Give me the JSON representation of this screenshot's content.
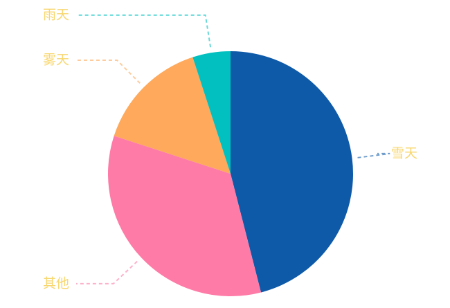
{
  "chart_data": {
    "type": "pie",
    "categories": [
      "雪天",
      "其他",
      "雾天",
      "雨天"
    ],
    "values": [
      46,
      34,
      15,
      5
    ],
    "colors": [
      "#0e5aa8",
      "#fe7ba7",
      "#fea95b",
      "#01c0bf"
    ],
    "label_color": "#f8d76e"
  }
}
